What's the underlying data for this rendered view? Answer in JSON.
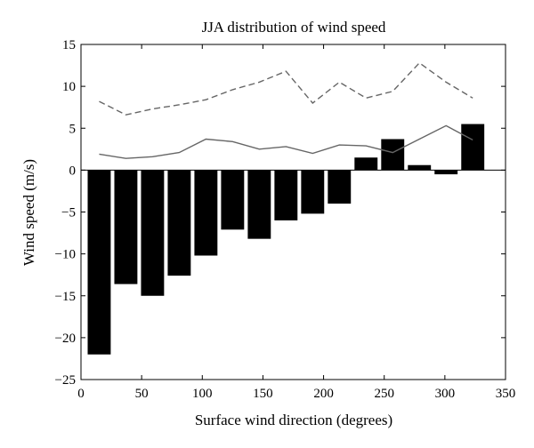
{
  "chart_data": {
    "type": "bar",
    "title": "JJA distribution of wind speed",
    "xlabel": "Surface wind direction (degrees)",
    "ylabel": "Wind speed (m/s)",
    "xlim": [
      0,
      350
    ],
    "ylim": [
      -25,
      15
    ],
    "xticks": [
      0,
      50,
      100,
      150,
      200,
      250,
      300,
      350
    ],
    "yticks": [
      -25,
      -20,
      -15,
      -10,
      -5,
      0,
      5,
      10,
      15
    ],
    "grid": false,
    "bar_width": 19,
    "bar_color": "#000000",
    "x": [
      15,
      37,
      59,
      81,
      103,
      125,
      147,
      169,
      191,
      213,
      235,
      257,
      279,
      301,
      323
    ],
    "series": [
      {
        "type": "bar",
        "values": [
          -22.0,
          -13.6,
          -15.0,
          -12.6,
          -10.2,
          -7.1,
          -8.2,
          -6.0,
          -5.2,
          -4.0,
          1.5,
          3.7,
          0.6,
          -0.5,
          5.5
        ]
      },
      {
        "type": "line",
        "style": "dashed",
        "color": "#666666",
        "values": [
          8.2,
          6.6,
          7.3,
          7.8,
          8.4,
          9.6,
          10.5,
          11.8,
          8.0,
          10.5,
          8.6,
          9.4,
          12.8,
          10.5,
          8.6
        ]
      },
      {
        "type": "line",
        "style": "solid",
        "color": "#666666",
        "values": [
          1.9,
          1.4,
          1.6,
          2.1,
          3.7,
          3.4,
          2.5,
          2.8,
          2.0,
          3.0,
          2.9,
          2.1,
          3.7,
          5.3,
          3.6
        ]
      }
    ]
  }
}
